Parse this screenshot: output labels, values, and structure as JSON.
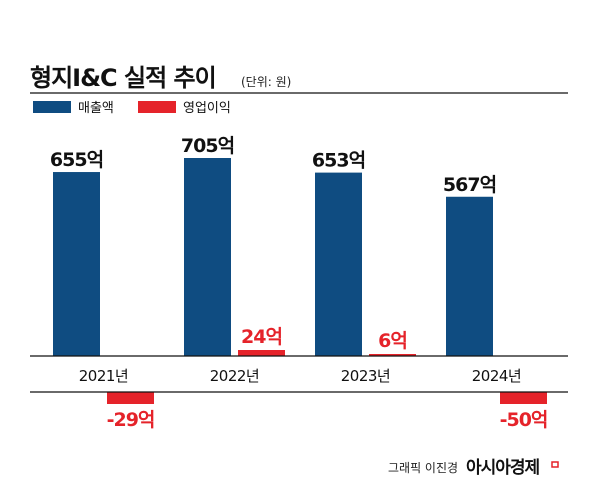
{
  "chart_data": {
    "type": "bar",
    "title": "형지I&C 실적 추이",
    "unit": "(단위: 원)",
    "categories": [
      "2021년",
      "2022년",
      "2023년",
      "2024년"
    ],
    "series": [
      {
        "name": "매출액",
        "color": "#0f4c81",
        "values": [
          655,
          705,
          653,
          567
        ],
        "labels": [
          "655억",
          "705억",
          "653억",
          "567억"
        ]
      },
      {
        "name": "영업이익",
        "color": "#e5232a",
        "values": [
          -29,
          24,
          6,
          -50
        ],
        "labels": [
          "-29억",
          "24억",
          "6억",
          "-50억"
        ]
      }
    ],
    "ylim": [
      -50,
      705
    ],
    "legend": "top-left"
  },
  "credit": {
    "graphic": "그래픽 이진경",
    "brand": "아시아경제"
  }
}
